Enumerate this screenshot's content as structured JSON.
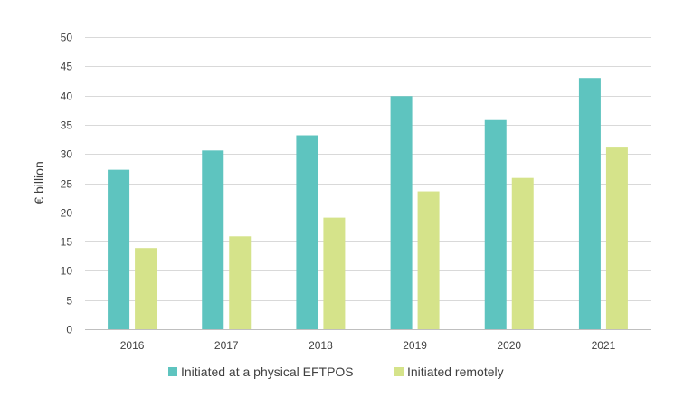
{
  "chart_data": {
    "type": "bar",
    "title": "",
    "xlabel": "",
    "ylabel": "€ billion",
    "ylim": [
      0,
      50
    ],
    "yticks": [
      0,
      5,
      10,
      15,
      20,
      25,
      30,
      35,
      40,
      45,
      50
    ],
    "grid": true,
    "legend_position": "bottom",
    "categories": [
      "2016",
      "2017",
      "2018",
      "2019",
      "2020",
      "2021"
    ],
    "series": [
      {
        "name": "Initiated at a physical EFTPOS",
        "color": "#5ec4bf",
        "values": [
          27.3,
          30.6,
          33.2,
          39.9,
          35.8,
          43.0
        ]
      },
      {
        "name": "Initiated remotely",
        "color": "#d5e38a",
        "values": [
          13.9,
          15.9,
          19.1,
          23.6,
          25.9,
          31.1
        ]
      }
    ]
  }
}
